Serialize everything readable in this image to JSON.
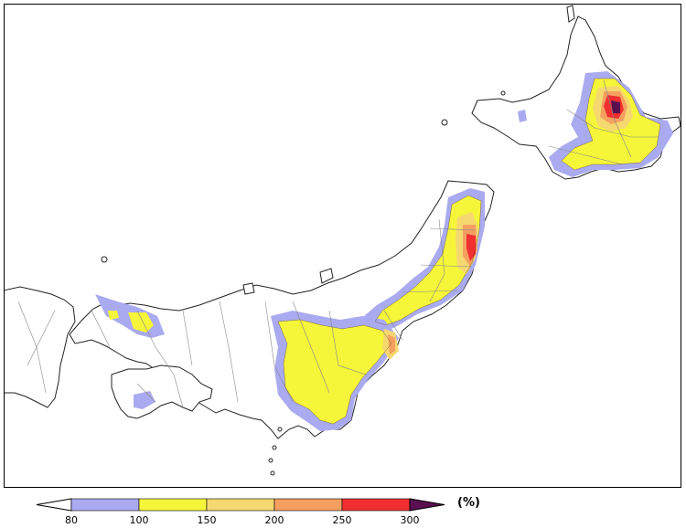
{
  "map": {
    "regions": [
      "Hokkaido",
      "Honshu",
      "Shikoku",
      "Kyushu"
    ],
    "colors": {
      "coast": "#222222",
      "boundary": "#888888",
      "land": "#ffffff"
    }
  },
  "legend": {
    "unit_label": "(%)",
    "ticks": [
      "80",
      "100",
      "150",
      "200",
      "250",
      "300"
    ],
    "bins": [
      {
        "from": null,
        "to": 80,
        "color": "#ffffff"
      },
      {
        "from": 80,
        "to": 100,
        "color": "#aaaaf0"
      },
      {
        "from": 100,
        "to": 150,
        "color": "#f5f53a"
      },
      {
        "from": 150,
        "to": 200,
        "color": "#f5d870"
      },
      {
        "from": 200,
        "to": 250,
        "color": "#f5a060"
      },
      {
        "from": 250,
        "to": 300,
        "color": "#f03030"
      },
      {
        "from": 300,
        "to": null,
        "color": "#5a1050"
      }
    ]
  }
}
